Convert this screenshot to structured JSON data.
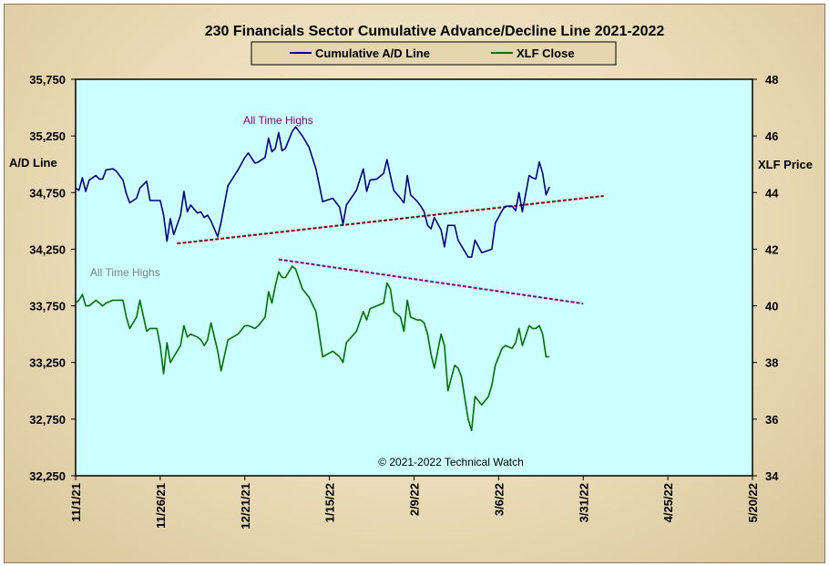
{
  "chart_data": {
    "type": "line",
    "title": "230 Financials  Sector Cumulative  Advance/Decline  Line 2021-2022",
    "ylabel_left": "A/D Line",
    "ylabel_right": "XLF Price",
    "copyright": "© 2021-2022  Technical Watch",
    "x_tick_labels": [
      "11/1/21",
      "11/26/21",
      "12/21/21",
      "1/15/22",
      "2/9/22",
      "3/6/22",
      "3/31/22",
      "4/25/22",
      "5/20/22"
    ],
    "x_range_days": [
      0,
      200
    ],
    "ylim_left": [
      32250,
      35750
    ],
    "ylim_right": [
      34,
      48
    ],
    "left_ticks": [
      "35,750",
      "35,250",
      "34,750",
      "34,250",
      "33,750",
      "33,250",
      "32,750",
      "32,250"
    ],
    "right_ticks": [
      "48",
      "46",
      "44",
      "42",
      "40",
      "38",
      "36",
      "34"
    ],
    "plot_background": "#ccffff",
    "grid": false,
    "legend_position": "top-center",
    "annotations": [
      {
        "text": "All Time Highs",
        "color": "#800080",
        "anchor": "ad"
      },
      {
        "text": "All Time Highs",
        "color": "#808080",
        "anchor": "xlf"
      }
    ],
    "series": [
      {
        "name": "Cumulative A/D Line",
        "axis": "left",
        "color": "#000080",
        "points": [
          [
            0,
            34790
          ],
          [
            1,
            34770
          ],
          [
            2,
            34880
          ],
          [
            3,
            34760
          ],
          [
            4,
            34860
          ],
          [
            6,
            34900
          ],
          [
            7,
            34870
          ],
          [
            8,
            34870
          ],
          [
            9,
            34950
          ],
          [
            11,
            34960
          ],
          [
            12,
            34940
          ],
          [
            14,
            34860
          ],
          [
            15,
            34740
          ],
          [
            16,
            34660
          ],
          [
            18,
            34700
          ],
          [
            19,
            34790
          ],
          [
            21,
            34850
          ],
          [
            22,
            34680
          ],
          [
            24,
            34680
          ],
          [
            25,
            34680
          ],
          [
            26,
            34550
          ],
          [
            27,
            34320
          ],
          [
            28,
            34520
          ],
          [
            29,
            34380
          ],
          [
            31,
            34550
          ],
          [
            32,
            34760
          ],
          [
            33,
            34580
          ],
          [
            34,
            34640
          ],
          [
            36,
            34570
          ],
          [
            37,
            34580
          ],
          [
            38,
            34530
          ],
          [
            39,
            34550
          ],
          [
            40,
            34500
          ],
          [
            42,
            34360
          ],
          [
            43,
            34490
          ],
          [
            45,
            34810
          ],
          [
            48,
            34950
          ],
          [
            50,
            35060
          ],
          [
            51,
            35100
          ],
          [
            53,
            35010
          ],
          [
            54,
            35020
          ],
          [
            56,
            35060
          ],
          [
            57,
            35230
          ],
          [
            58,
            35110
          ],
          [
            59,
            35140
          ],
          [
            60,
            35280
          ],
          [
            61,
            35120
          ],
          [
            62,
            35140
          ],
          [
            64,
            35290
          ],
          [
            65,
            35330
          ],
          [
            67,
            35250
          ],
          [
            69,
            35150
          ],
          [
            71,
            34960
          ],
          [
            73,
            34670
          ],
          [
            76,
            34700
          ],
          [
            78,
            34620
          ],
          [
            79,
            34470
          ],
          [
            80,
            34640
          ],
          [
            83,
            34770
          ],
          [
            85,
            34960
          ],
          [
            86,
            34760
          ],
          [
            87,
            34860
          ],
          [
            89,
            34870
          ],
          [
            91,
            34920
          ],
          [
            92,
            35040
          ],
          [
            93,
            34900
          ],
          [
            94,
            34770
          ],
          [
            96,
            34700
          ],
          [
            97,
            34660
          ],
          [
            98,
            34900
          ],
          [
            99,
            34730
          ],
          [
            101,
            34670
          ],
          [
            102,
            34630
          ],
          [
            103,
            34580
          ],
          [
            104,
            34460
          ],
          [
            105,
            34430
          ],
          [
            106,
            34530
          ],
          [
            108,
            34420
          ],
          [
            109,
            34270
          ],
          [
            110,
            34460
          ],
          [
            112,
            34460
          ],
          [
            113,
            34330
          ],
          [
            114,
            34280
          ],
          [
            116,
            34180
          ],
          [
            117,
            34180
          ],
          [
            118,
            34330
          ],
          [
            120,
            34220
          ],
          [
            122,
            34240
          ],
          [
            123,
            34250
          ],
          [
            124,
            34480
          ],
          [
            126,
            34590
          ],
          [
            127,
            34630
          ],
          [
            129,
            34630
          ],
          [
            130,
            34590
          ],
          [
            131,
            34750
          ],
          [
            132,
            34580
          ],
          [
            134,
            34900
          ],
          [
            135,
            34880
          ],
          [
            136,
            34870
          ],
          [
            137,
            35020
          ],
          [
            138,
            34920
          ],
          [
            139,
            34730
          ],
          [
            140,
            34800
          ]
        ]
      },
      {
        "name": "XLF Close",
        "axis": "right",
        "color": "#007000",
        "points": [
          [
            0,
            40.1
          ],
          [
            1,
            40.2
          ],
          [
            2,
            40.4
          ],
          [
            3,
            40.0
          ],
          [
            4,
            40.0
          ],
          [
            6,
            40.2
          ],
          [
            7,
            40.1
          ],
          [
            8,
            40.0
          ],
          [
            9,
            40.1
          ],
          [
            11,
            40.2
          ],
          [
            12,
            40.2
          ],
          [
            14,
            40.2
          ],
          [
            15,
            39.6
          ],
          [
            16,
            39.2
          ],
          [
            18,
            39.6
          ],
          [
            19,
            40.2
          ],
          [
            21,
            39.1
          ],
          [
            22,
            39.2
          ],
          [
            24,
            39.2
          ],
          [
            25,
            38.6
          ],
          [
            26,
            37.6
          ],
          [
            27,
            38.7
          ],
          [
            28,
            38.0
          ],
          [
            29,
            38.2
          ],
          [
            31,
            38.6
          ],
          [
            32,
            39.3
          ],
          [
            33,
            38.9
          ],
          [
            34,
            39.0
          ],
          [
            36,
            38.9
          ],
          [
            37,
            38.8
          ],
          [
            38,
            38.6
          ],
          [
            39,
            38.8
          ],
          [
            40,
            39.4
          ],
          [
            42,
            38.4
          ],
          [
            43,
            37.7
          ],
          [
            45,
            38.8
          ],
          [
            48,
            39.0
          ],
          [
            50,
            39.3
          ],
          [
            51,
            39.3
          ],
          [
            53,
            39.2
          ],
          [
            54,
            39.3
          ],
          [
            56,
            39.6
          ],
          [
            57,
            40.5
          ],
          [
            58,
            40.1
          ],
          [
            59,
            40.7
          ],
          [
            60,
            41.2
          ],
          [
            61,
            41.0
          ],
          [
            62,
            41.0
          ],
          [
            64,
            41.4
          ],
          [
            65,
            41.3
          ],
          [
            67,
            40.6
          ],
          [
            69,
            40.3
          ],
          [
            71,
            39.8
          ],
          [
            73,
            38.2
          ],
          [
            76,
            38.4
          ],
          [
            78,
            38.2
          ],
          [
            79,
            38.0
          ],
          [
            80,
            38.7
          ],
          [
            83,
            39.1
          ],
          [
            85,
            39.8
          ],
          [
            86,
            39.5
          ],
          [
            87,
            39.9
          ],
          [
            89,
            40.0
          ],
          [
            91,
            40.1
          ],
          [
            92,
            40.8
          ],
          [
            93,
            40.6
          ],
          [
            94,
            39.8
          ],
          [
            96,
            39.6
          ],
          [
            97,
            39.1
          ],
          [
            98,
            40.2
          ],
          [
            99,
            39.6
          ],
          [
            101,
            39.5
          ],
          [
            102,
            39.5
          ],
          [
            103,
            39.4
          ],
          [
            104,
            39.0
          ],
          [
            105,
            38.3
          ],
          [
            106,
            37.8
          ],
          [
            108,
            39.0
          ],
          [
            109,
            38.6
          ],
          [
            110,
            37.0
          ],
          [
            112,
            37.9
          ],
          [
            113,
            37.8
          ],
          [
            114,
            37.5
          ],
          [
            116,
            36.0
          ],
          [
            117,
            35.6
          ],
          [
            118,
            36.8
          ],
          [
            120,
            36.5
          ],
          [
            122,
            36.8
          ],
          [
            123,
            37.2
          ],
          [
            124,
            37.9
          ],
          [
            126,
            38.5
          ],
          [
            127,
            38.6
          ],
          [
            129,
            38.5
          ],
          [
            130,
            38.7
          ],
          [
            131,
            39.2
          ],
          [
            132,
            38.6
          ],
          [
            134,
            39.3
          ],
          [
            135,
            39.2
          ],
          [
            136,
            39.2
          ],
          [
            137,
            39.3
          ],
          [
            138,
            39.0
          ],
          [
            139,
            38.2
          ],
          [
            140,
            38.2
          ]
        ]
      }
    ],
    "trendlines": [
      {
        "axis": "left",
        "color": "#800000",
        "x": [
          30,
          156
        ],
        "y": [
          34300,
          34720
        ]
      },
      {
        "axis": "left",
        "color": "#800080",
        "x": [
          60,
          150
        ],
        "y": [
          34160,
          33770
        ]
      }
    ]
  }
}
